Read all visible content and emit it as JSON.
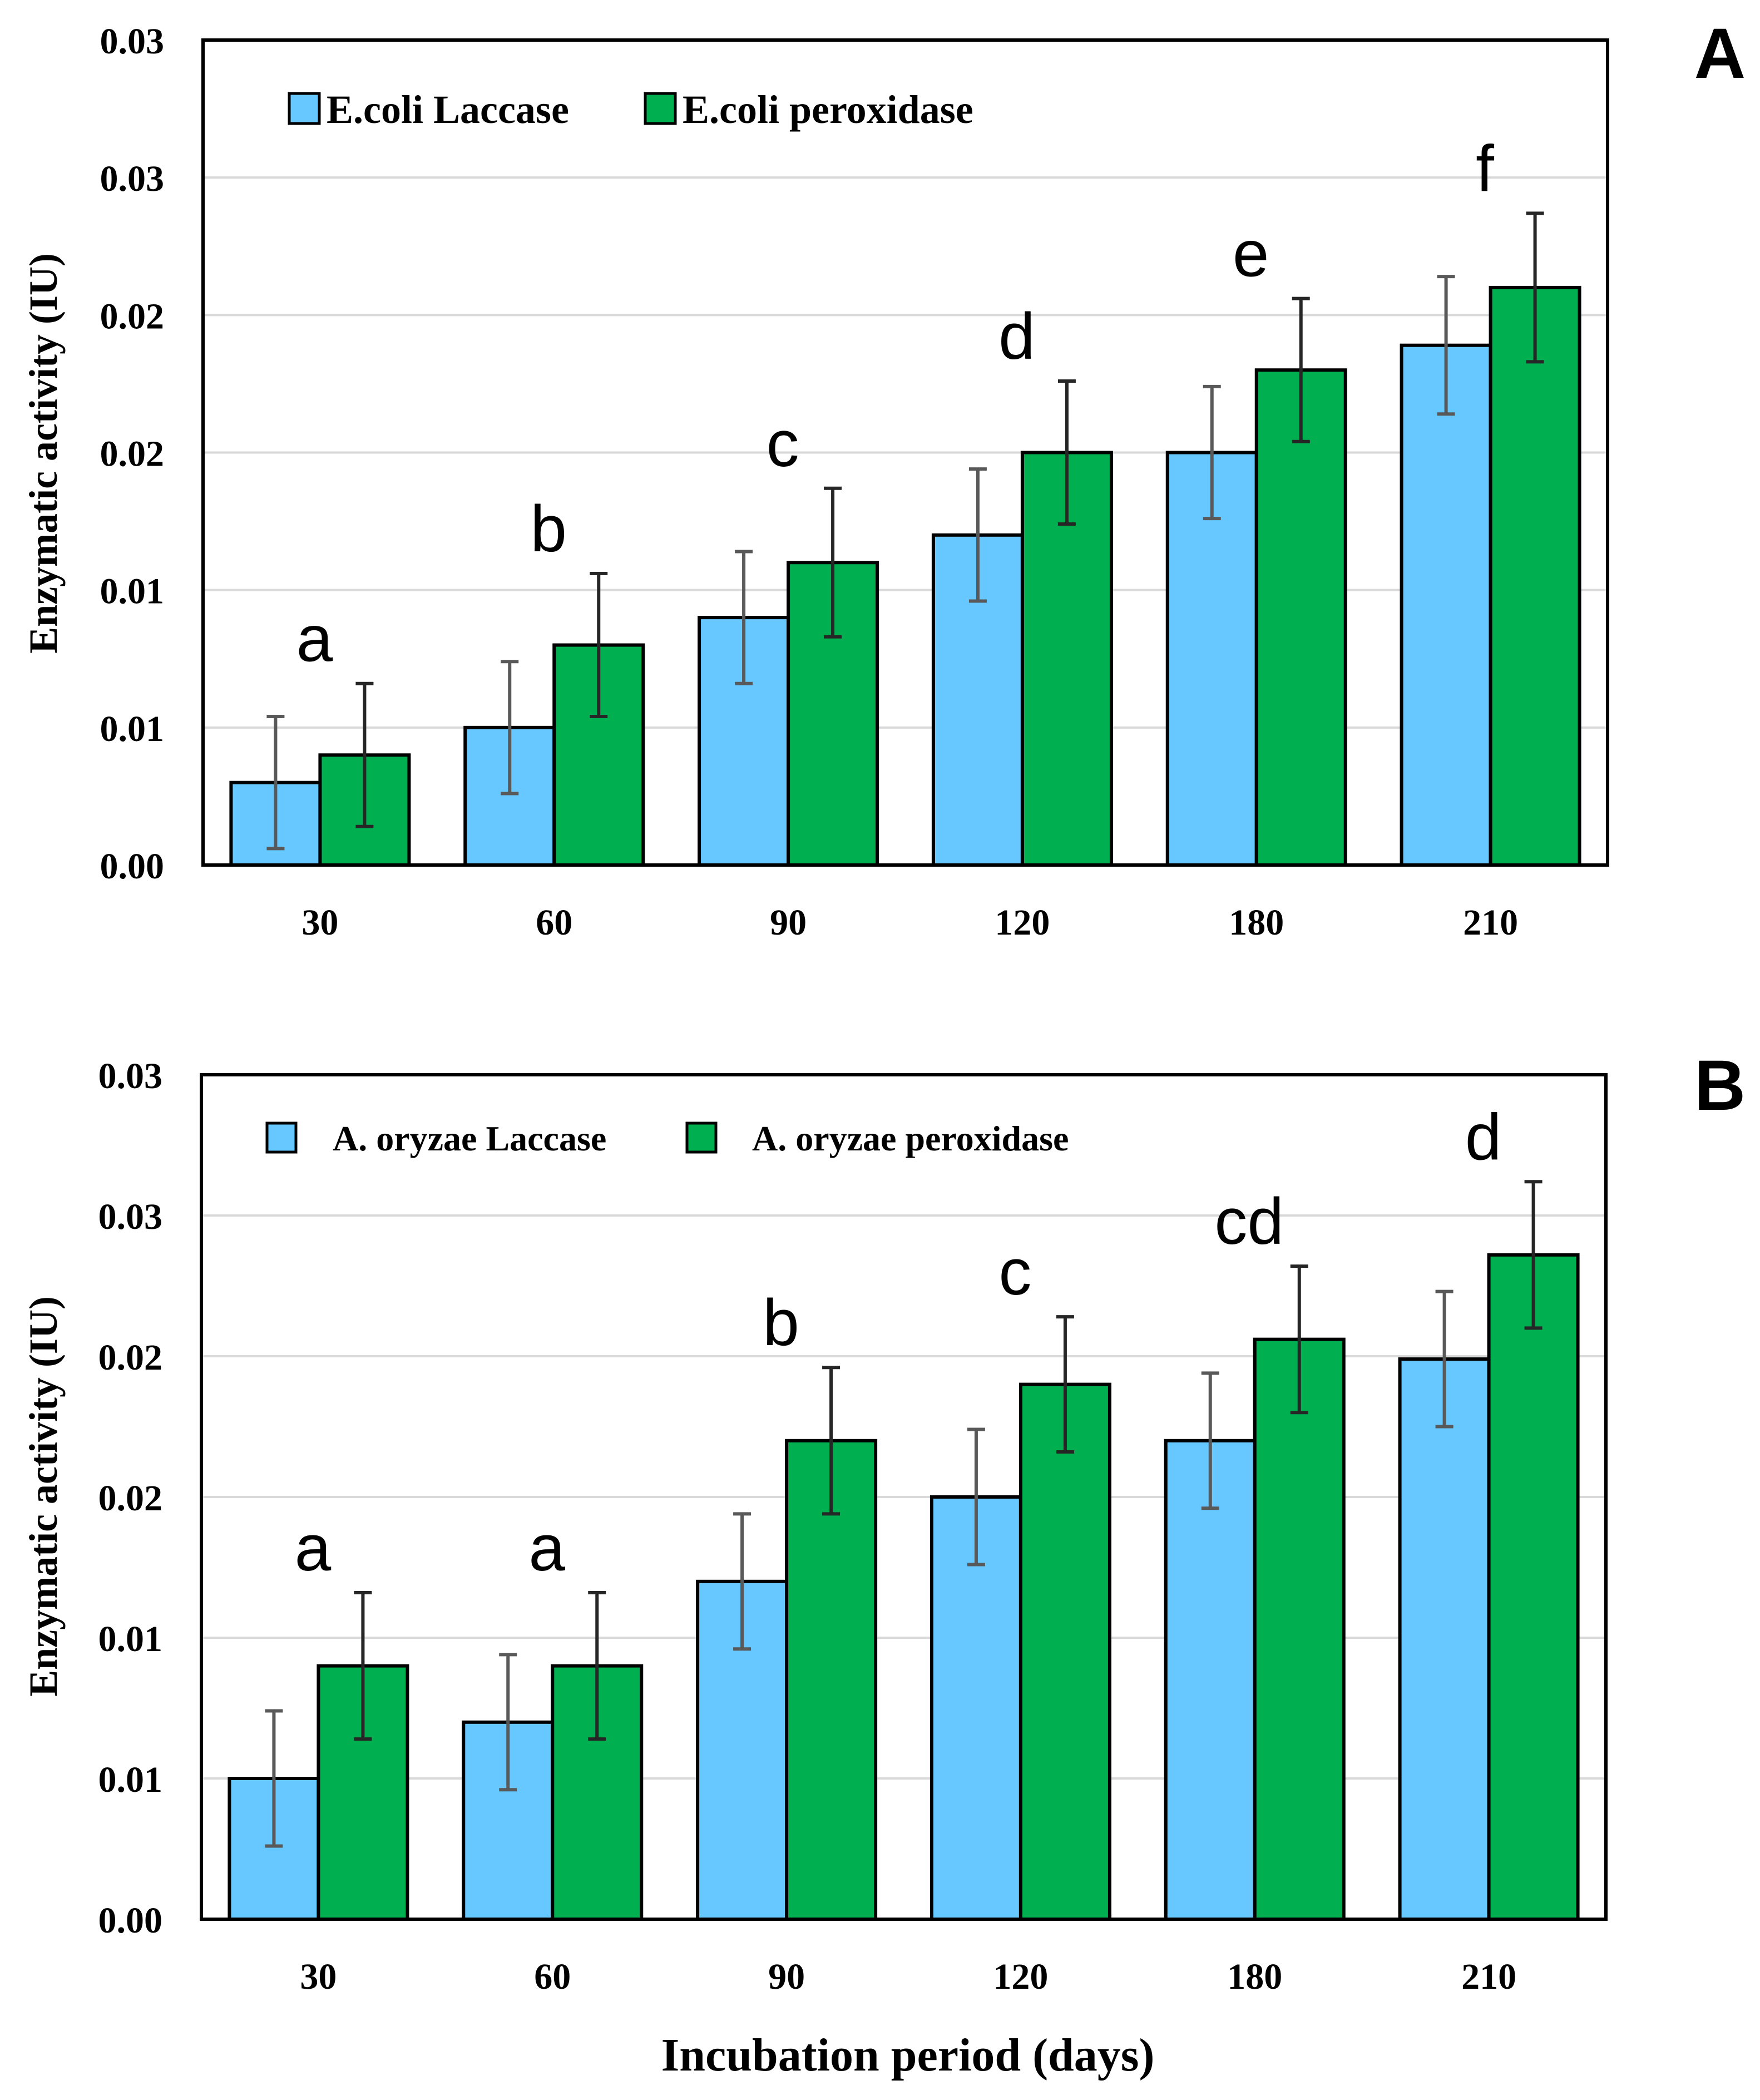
{
  "figure": {
    "xlabel": "Incubation period (days)"
  },
  "chart_data": [
    {
      "panel": "A",
      "type": "bar",
      "ylabel": "Enzymatic activity (IU)",
      "xlabel": "",
      "ylim": [
        0,
        0.03
      ],
      "yticks": [
        0.0,
        0.005,
        0.01,
        0.015,
        0.02,
        0.025,
        0.03
      ],
      "ytick_labels": [
        "0.00",
        "0.01",
        "0.01",
        "0.02",
        "0.02",
        "0.03",
        "0.03"
      ],
      "grid": true,
      "legend_position": "top-left",
      "categories": [
        "30",
        "60",
        "90",
        "120",
        "180",
        "210"
      ],
      "series": [
        {
          "name": "E.coli Laccase",
          "color": "#66c8ff",
          "values": [
            0.003,
            0.005,
            0.009,
            0.012,
            0.015,
            0.0189
          ],
          "errors": [
            0.0024,
            0.0024,
            0.0024,
            0.0024,
            0.0024,
            0.0025
          ]
        },
        {
          "name": "E.coli peroxidase",
          "color": "#00b050",
          "values": [
            0.004,
            0.008,
            0.011,
            0.015,
            0.018,
            0.021
          ],
          "errors": [
            0.0026,
            0.0026,
            0.0027,
            0.0026,
            0.0026,
            0.0027
          ]
        }
      ],
      "annotations": [
        "a",
        "b",
        "c",
        "d",
        "e",
        "f"
      ]
    },
    {
      "panel": "B",
      "type": "bar",
      "ylabel": "Enzymatic activity (IU)",
      "xlabel": "",
      "ylim": [
        0,
        0.03
      ],
      "yticks": [
        0.0,
        0.005,
        0.01,
        0.015,
        0.02,
        0.025,
        0.03
      ],
      "ytick_labels": [
        "0.00",
        "0.01",
        "0.01",
        "0.02",
        "0.02",
        "0.03",
        "0.03"
      ],
      "grid": true,
      "legend_position": "top-left",
      "categories": [
        "30",
        "60",
        "90",
        "120",
        "180",
        "210"
      ],
      "series": [
        {
          "name": "A. oryzae Laccase",
          "color": "#66c8ff",
          "values": [
            0.005,
            0.007,
            0.012,
            0.015,
            0.017,
            0.0199
          ],
          "errors": [
            0.0024,
            0.0024,
            0.0024,
            0.0024,
            0.0024,
            0.0024
          ]
        },
        {
          "name": "A. oryzae peroxidase",
          "color": "#00b050",
          "values": [
            0.009,
            0.009,
            0.017,
            0.019,
            0.0206,
            0.0236
          ],
          "errors": [
            0.0026,
            0.0026,
            0.0026,
            0.0024,
            0.0026,
            0.0026
          ]
        }
      ],
      "annotations": [
        "a",
        "a",
        "b",
        "c",
        "cd",
        "d"
      ]
    }
  ]
}
